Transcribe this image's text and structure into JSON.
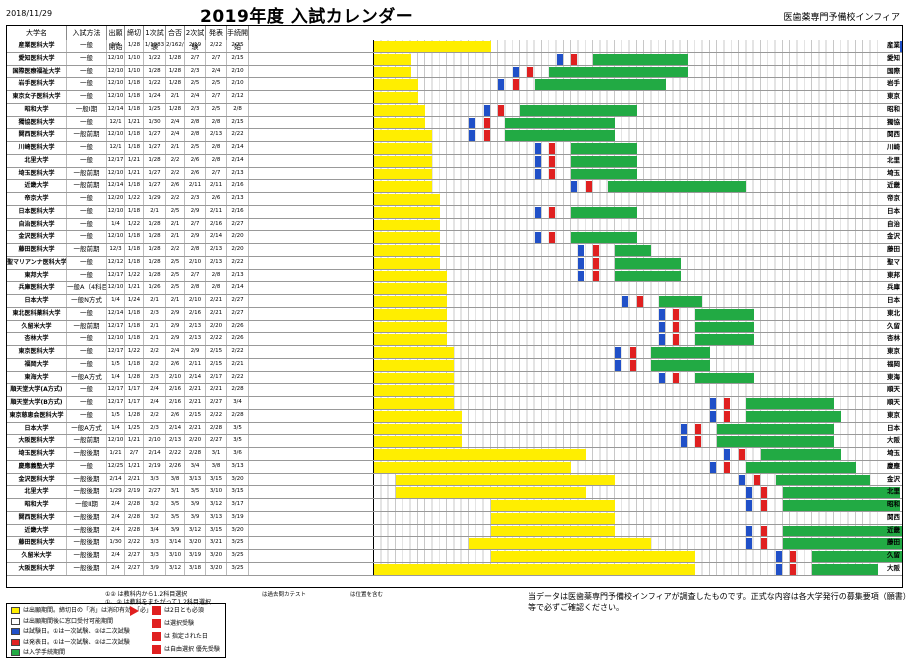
{
  "header": {
    "date": "2018/11/29",
    "title": "2019年度 入試カレンダー",
    "org": "医歯薬専門予備校インフィア"
  },
  "columns": {
    "name": "大学名",
    "method": "入試方法",
    "cols": [
      "出願開始",
      "締切",
      "1次試験",
      "合否",
      "2次試験",
      "発表",
      "手続開始",
      "締切",
      "",
      "",
      "",
      "",
      "",
      ""
    ],
    "abbr": ""
  },
  "colors": {
    "yellow": "#ffee00",
    "green": "#22aa44",
    "red": "#e02020",
    "blue": "#2050c8"
  },
  "rows": [
    {
      "name": "産業医科大学",
      "method": "一般",
      "cells": [
        "1/4",
        "1/28",
        "1/1983",
        "2/162/3",
        "2/19",
        "2/22",
        "2/25"
      ],
      "abbr": "産業",
      "y0": 0,
      "y1": 16,
      "g0": 77,
      "g1": 84
    },
    {
      "name": "愛知医科大学",
      "method": "一般",
      "cells": [
        "12/10",
        "1/10",
        "1/22",
        "1/28",
        "2/7",
        "2/7",
        "2/15"
      ],
      "abbr": "愛知",
      "y0": 0,
      "y1": 5,
      "g0": 30,
      "g1": 43
    },
    {
      "name": "国際医療福祉大学",
      "method": "一般",
      "cells": [
        "12/10",
        "1/10",
        "1/28",
        "1/28",
        "2/3",
        "2/4",
        "2/10"
      ],
      "abbr": "国際",
      "y0": 0,
      "y1": 5,
      "g0": 24,
      "g1": 43
    },
    {
      "name": "岩手医科大学",
      "method": "一般",
      "cells": [
        "12/10",
        "1/18",
        "1/22",
        "1/28",
        "2/5",
        "2/5",
        "2/10"
      ],
      "abbr": "岩手",
      "y0": 0,
      "y1": 6,
      "g0": 22,
      "g1": 40
    },
    {
      "name": "東京女子医科大学",
      "method": "一般",
      "cells": [
        "12/10",
        "1/18",
        "1/24",
        "2/1",
        "2/4",
        "2/7",
        "2/12"
      ],
      "abbr": "東京",
      "y0": 0,
      "y1": 6,
      "g0": 0,
      "g1": 0
    },
    {
      "name": "昭和大学",
      "method": "一般Ⅰ期",
      "cells": [
        "12/14",
        "1/18",
        "1/25",
        "1/28",
        "2/3",
        "2/5",
        "2/8"
      ],
      "abbr": "昭和",
      "y0": 0,
      "y1": 7,
      "g0": 20,
      "g1": 36
    },
    {
      "name": "獨協医科大学",
      "method": "一般",
      "cells": [
        "12/1",
        "1/21",
        "1/30",
        "2/4",
        "2/8",
        "2/8",
        "2/15"
      ],
      "abbr": "獨協",
      "y0": 0,
      "y1": 7,
      "g0": 18,
      "g1": 33
    },
    {
      "name": "関西医科大学",
      "method": "一般前期",
      "cells": [
        "12/10",
        "1/18",
        "1/27",
        "2/4",
        "2/8",
        "2/13",
        "2/22"
      ],
      "abbr": "関西",
      "y0": 0,
      "y1": 8,
      "g0": 18,
      "g1": 33
    },
    {
      "name": "川崎医科大学",
      "method": "一般",
      "cells": [
        "12/1",
        "1/18",
        "1/27",
        "2/1",
        "2/5",
        "2/8",
        "2/14"
      ],
      "abbr": "川崎",
      "y0": 0,
      "y1": 8,
      "g0": 27,
      "g1": 36
    },
    {
      "name": "北里大学",
      "method": "一般",
      "cells": [
        "12/17",
        "1/21",
        "1/28",
        "2/2",
        "2/6",
        "2/8",
        "2/14"
      ],
      "abbr": "北里",
      "y0": 0,
      "y1": 8,
      "g0": 27,
      "g1": 36
    },
    {
      "name": "埼玉医科大学",
      "method": "一般前期",
      "cells": [
        "12/10",
        "1/21",
        "1/27",
        "2/2",
        "2/6",
        "2/7",
        "2/13"
      ],
      "abbr": "埼玉",
      "y0": 0,
      "y1": 8,
      "g0": 27,
      "g1": 36
    },
    {
      "name": "近畿大学",
      "method": "一般前期",
      "cells": [
        "12/14",
        "1/18",
        "1/27",
        "2/6",
        "2/11",
        "2/11",
        "2/16"
      ],
      "abbr": "近畿",
      "y0": 0,
      "y1": 8,
      "g0": 32,
      "g1": 51
    },
    {
      "name": "帝京大学",
      "method": "一般",
      "cells": [
        "12/20",
        "1/22",
        "1/29",
        "2/2",
        "2/3",
        "2/6",
        "2/13"
      ],
      "abbr": "帝京",
      "y0": 0,
      "y1": 9,
      "g0": 0,
      "g1": 0
    },
    {
      "name": "日本医科大学",
      "method": "一般",
      "cells": [
        "12/10",
        "1/18",
        "2/1",
        "2/5",
        "2/9",
        "2/11",
        "2/16"
      ],
      "abbr": "日本",
      "y0": 0,
      "y1": 9,
      "g0": 27,
      "g1": 36
    },
    {
      "name": "自治医科大学",
      "method": "一般",
      "cells": [
        "1/4",
        "1/22",
        "1/28",
        "2/1",
        "2/7",
        "2/16",
        "2/27"
      ],
      "abbr": "自治",
      "y0": 0,
      "y1": 9,
      "g0": 0,
      "g1": 0
    },
    {
      "name": "金沢医科大学",
      "method": "一般",
      "cells": [
        "12/10",
        "1/18",
        "1/28",
        "2/1",
        "2/9",
        "2/14",
        "2/20"
      ],
      "abbr": "金沢",
      "y0": 0,
      "y1": 9,
      "g0": 27,
      "g1": 36
    },
    {
      "name": "藤田医科大学",
      "method": "一般前期",
      "cells": [
        "12/3",
        "1/18",
        "1/28",
        "2/2",
        "2/8",
        "2/13",
        "2/20"
      ],
      "abbr": "藤田",
      "y0": 0,
      "y1": 9,
      "g0": 33,
      "g1": 38
    },
    {
      "name": "聖マリアンナ医科大学",
      "method": "一般",
      "cells": [
        "12/12",
        "1/18",
        "1/28",
        "2/5",
        "2/10",
        "2/13",
        "2/22"
      ],
      "abbr": "聖マ",
      "y0": 0,
      "y1": 9,
      "g0": 33,
      "g1": 42
    },
    {
      "name": "東邦大学",
      "method": "一般",
      "cells": [
        "12/17",
        "1/22",
        "1/28",
        "2/5",
        "2/7",
        "2/8",
        "2/13"
      ],
      "abbr": "東邦",
      "y0": 0,
      "y1": 10,
      "g0": 33,
      "g1": 42
    },
    {
      "name": "兵庫医科大学",
      "method": "一般A（4科目型）",
      "cells": [
        "12/10",
        "1/21",
        "1/26",
        "2/5",
        "2/8",
        "2/8",
        "2/14"
      ],
      "abbr": "兵庫",
      "y0": 0,
      "y1": 10,
      "g0": 0,
      "g1": 0
    },
    {
      "name": "日本大学",
      "method": "一般N方式",
      "cells": [
        "1/4",
        "1/24",
        "2/1",
        "2/1",
        "2/10",
        "2/21",
        "2/27"
      ],
      "abbr": "日本",
      "y0": 0,
      "y1": 10,
      "g0": 39,
      "g1": 45
    },
    {
      "name": "東北医科薬科大学",
      "method": "一般",
      "cells": [
        "12/14",
        "1/18",
        "2/3",
        "2/9",
        "2/16",
        "2/21",
        "2/27"
      ],
      "abbr": "東北",
      "y0": 0,
      "y1": 10,
      "g0": 44,
      "g1": 52
    },
    {
      "name": "久留米大学",
      "method": "一般前期",
      "cells": [
        "12/17",
        "1/18",
        "2/1",
        "2/9",
        "2/13",
        "2/20",
        "2/26"
      ],
      "abbr": "久留",
      "y0": 0,
      "y1": 10,
      "g0": 44,
      "g1": 52
    },
    {
      "name": "杏林大学",
      "method": "一般",
      "cells": [
        "12/10",
        "1/18",
        "2/1",
        "2/9",
        "2/13",
        "2/22",
        "2/26"
      ],
      "abbr": "杏林",
      "y0": 0,
      "y1": 10,
      "g0": 44,
      "g1": 52
    },
    {
      "name": "東京医科大学",
      "method": "一般",
      "cells": [
        "12/17",
        "1/22",
        "2/2",
        "2/4",
        "2/9",
        "2/15",
        "2/22"
      ],
      "abbr": "東京",
      "y0": 0,
      "y1": 11,
      "g0": 38,
      "g1": 46
    },
    {
      "name": "福岡大学",
      "method": "一般",
      "cells": [
        "1/5",
        "1/18",
        "2/2",
        "2/6",
        "2/11",
        "2/15",
        "2/21"
      ],
      "abbr": "福岡",
      "y0": 0,
      "y1": 11,
      "g0": 38,
      "g1": 46
    },
    {
      "name": "東海大学",
      "method": "一般A方式",
      "cells": [
        "1/4",
        "1/28",
        "2/3",
        "2/10",
        "2/14",
        "2/17",
        "2/22"
      ],
      "abbr": "東海",
      "y0": 0,
      "y1": 11,
      "g0": 44,
      "g1": 52
    },
    {
      "name": "順天堂大学(A方式)",
      "method": "一般",
      "cells": [
        "12/17",
        "1/17",
        "2/4",
        "2/16",
        "2/21",
        "2/21",
        "2/28"
      ],
      "abbr": "順天",
      "y0": 0,
      "y1": 11,
      "g0": 0,
      "g1": 0
    },
    {
      "name": "順天堂大学(B方式)",
      "method": "一般",
      "cells": [
        "12/17",
        "1/17",
        "2/4",
        "2/16",
        "2/21",
        "2/27",
        "3/4"
      ],
      "abbr": "順天",
      "y0": 0,
      "y1": 11,
      "g0": 51,
      "g1": 63
    },
    {
      "name": "東京慈恵会医科大学",
      "method": "一般",
      "cells": [
        "1/5",
        "1/28",
        "2/2",
        "2/6",
        "2/15",
        "2/22",
        "2/28"
      ],
      "abbr": "東京",
      "y0": 0,
      "y1": 12,
      "g0": 51,
      "g1": 64
    },
    {
      "name": "日本大学",
      "method": "一般A方式",
      "cells": [
        "1/4",
        "1/25",
        "2/3",
        "2/14",
        "2/21",
        "2/28",
        "3/5"
      ],
      "abbr": "日本",
      "y0": 0,
      "y1": 12,
      "g0": 47,
      "g1": 63
    },
    {
      "name": "大阪医科大学",
      "method": "一般前期",
      "cells": [
        "12/10",
        "1/21",
        "2/10",
        "2/13",
        "2/20",
        "2/27",
        "3/5"
      ],
      "abbr": "大阪",
      "y0": 0,
      "y1": 12,
      "g0": 47,
      "g1": 63
    },
    {
      "name": "埼玉医科大学",
      "method": "一般後期",
      "cells": [
        "1/21",
        "2/7",
        "2/14",
        "2/22",
        "2/28",
        "3/1",
        "3/6"
      ],
      "abbr": "埼玉",
      "y0": 0,
      "y1": 29,
      "g0": 53,
      "g1": 64
    },
    {
      "name": "慶應義塾大学",
      "method": "一般",
      "cells": [
        "12/25",
        "1/21",
        "2/19",
        "2/26",
        "3/4",
        "3/8",
        "3/13"
      ],
      "abbr": "慶應",
      "y0": 0,
      "y1": 27,
      "g0": 51,
      "g1": 66
    },
    {
      "name": "金沢医科大学",
      "method": "一般後期",
      "cells": [
        "2/14",
        "2/21",
        "3/3",
        "3/8",
        "3/13",
        "3/15",
        "3/20"
      ],
      "abbr": "金沢",
      "y0": 3,
      "y1": 33,
      "g0": 55,
      "g1": 68
    },
    {
      "name": "北里大学",
      "method": "一般後期",
      "cells": [
        "1/29",
        "2/19",
        "2/27",
        "3/1",
        "3/5",
        "3/10",
        "3/15"
      ],
      "abbr": "北里",
      "y0": 3,
      "y1": 29,
      "g0": 56,
      "g1": 72
    },
    {
      "name": "昭和大学",
      "method": "一般Ⅱ期",
      "cells": [
        "2/4",
        "2/28",
        "3/2",
        "3/5",
        "3/9",
        "3/12",
        "3/17"
      ],
      "abbr": "昭和",
      "y0": 16,
      "y1": 33,
      "g0": 56,
      "g1": 72
    },
    {
      "name": "関西医科大学",
      "method": "一般後期",
      "cells": [
        "2/4",
        "2/28",
        "3/2",
        "3/5",
        "3/9",
        "3/13",
        "3/19"
      ],
      "abbr": "関西",
      "y0": 16,
      "y1": 33,
      "g0": 0,
      "g1": 0
    },
    {
      "name": "近畿大学",
      "method": "一般後期",
      "cells": [
        "2/4",
        "2/28",
        "3/4",
        "3/9",
        "3/12",
        "3/15",
        "3/20"
      ],
      "abbr": "近畿",
      "y0": 16,
      "y1": 33,
      "g0": 56,
      "g1": 75
    },
    {
      "name": "藤田医科大学",
      "method": "一般後期",
      "cells": [
        "1/30",
        "2/22",
        "3/3",
        "3/14",
        "3/20",
        "3/21",
        "3/25"
      ],
      "abbr": "藤田",
      "y0": 13,
      "y1": 38,
      "g0": 56,
      "g1": 75
    },
    {
      "name": "久留米大学",
      "method": "一般後期",
      "cells": [
        "2/4",
        "2/27",
        "3/3",
        "3/10",
        "3/19",
        "3/20",
        "3/25"
      ],
      "abbr": "久留",
      "y0": 16,
      "y1": 44,
      "g0": 60,
      "g1": 75
    },
    {
      "name": "大阪医科大学",
      "method": "一般後期",
      "cells": [
        "2/4",
        "2/27",
        "3/9",
        "3/12",
        "3/18",
        "3/20",
        "3/25"
      ],
      "abbr": "大阪",
      "y0": 0,
      "y1": 44,
      "g0": 60,
      "g1": 69
    }
  ],
  "notes": {
    "n1": "①② は教科内から1.2科目選択",
    "n2": "①、② は教科をまたがって1.2科目選択",
    "n3": "は過去問カテスト",
    "n4": "は位置を含む",
    "footer": "当データは医歯薬専門予備校インフィアが調査したものです。正式な内容は各大学発行の募集要項（願書）等で必ずご確認ください。"
  },
  "legend": {
    "items": [
      {
        "color": "#ffee00",
        "label": "は出願期間。締切日の「消」は消印有効、「必」"
      },
      {
        "color": "#ffffff",
        "label": "は出願期間後に窓口受付可能期間"
      },
      {
        "color": "#2050c8",
        "label": "は試験日。①は一次試験、②は二次試験"
      },
      {
        "color": "#e02020",
        "label": "は発表日。①は一次試験、②は二次試験"
      },
      {
        "color": "#22aa44",
        "label": "は入学手続期間"
      }
    ],
    "right": [
      {
        "label": "は2日とも必須"
      },
      {
        "label": "は選択受験"
      },
      {
        "label": "は 指定された日"
      },
      {
        "label": "は自由選択 優先受験"
      }
    ]
  }
}
